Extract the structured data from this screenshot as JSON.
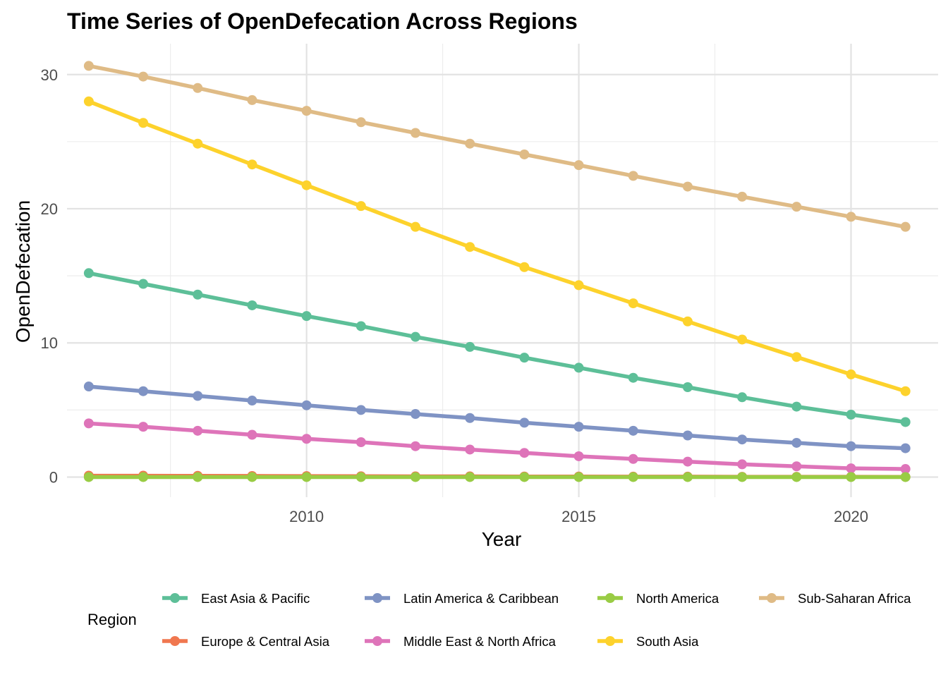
{
  "chart_data": {
    "type": "line",
    "title": "Time Series of OpenDefecation Across Regions",
    "xlabel": "Year",
    "ylabel": "OpenDefecation",
    "xlim": [
      2005.6,
      2021.6
    ],
    "ylim": [
      -1.5,
      32.3
    ],
    "x_ticks": [
      2010,
      2015,
      2020
    ],
    "y_ticks": [
      0,
      10,
      20,
      30
    ],
    "grid": true,
    "legend_title": "Region",
    "legend_position": "bottom",
    "x": [
      2006,
      2007,
      2008,
      2009,
      2010,
      2011,
      2012,
      2013,
      2014,
      2015,
      2016,
      2017,
      2018,
      2019,
      2020,
      2021
    ],
    "series": [
      {
        "name": "East Asia & Pacific",
        "color": "#5DBF98",
        "values": [
          15.2,
          14.4,
          13.6,
          12.8,
          12.0,
          11.25,
          10.45,
          9.7,
          8.9,
          8.15,
          7.4,
          6.7,
          5.95,
          5.25,
          4.65,
          4.1
        ]
      },
      {
        "name": "Europe & Central Asia",
        "color": "#F0774F",
        "values": [
          0.1,
          0.1,
          0.09,
          0.08,
          0.07,
          0.06,
          0.05,
          0.05,
          0.04,
          0.04,
          0.03,
          0.03,
          0.02,
          0.02,
          0.02,
          0.01
        ]
      },
      {
        "name": "Latin America & Caribbean",
        "color": "#7F93C4",
        "values": [
          6.75,
          6.4,
          6.05,
          5.7,
          5.35,
          5.0,
          4.7,
          4.4,
          4.05,
          3.75,
          3.45,
          3.1,
          2.8,
          2.55,
          2.3,
          2.15
        ]
      },
      {
        "name": "Middle East & North Africa",
        "color": "#DE74B9",
        "values": [
          4.0,
          3.75,
          3.45,
          3.15,
          2.85,
          2.6,
          2.3,
          2.05,
          1.8,
          1.55,
          1.35,
          1.15,
          0.95,
          0.8,
          0.65,
          0.6
        ]
      },
      {
        "name": "North America",
        "color": "#99CC44",
        "values": [
          0.0,
          0.0,
          0.0,
          0.0,
          0.0,
          0.0,
          0.0,
          0.0,
          0.0,
          0.0,
          0.0,
          0.0,
          0.0,
          0.0,
          0.0,
          0.0
        ]
      },
      {
        "name": "South Asia",
        "color": "#FDD22C",
        "values": [
          28.0,
          26.4,
          24.85,
          23.3,
          21.75,
          20.2,
          18.65,
          17.15,
          15.65,
          14.3,
          12.95,
          11.6,
          10.25,
          8.95,
          7.65,
          6.4
        ]
      },
      {
        "name": "Sub-Saharan Africa",
        "color": "#DFBB86",
        "values": [
          30.65,
          29.85,
          29.0,
          28.1,
          27.3,
          26.45,
          25.65,
          24.85,
          24.05,
          23.25,
          22.45,
          21.65,
          20.9,
          20.15,
          19.4,
          18.65
        ]
      }
    ],
    "legend_rows": [
      [
        "East Asia & Pacific",
        "Latin America & Caribbean",
        "North America",
        "Sub-Saharan Africa"
      ],
      [
        "Europe & Central Asia",
        "Middle East & North Africa",
        "South Asia"
      ]
    ]
  }
}
